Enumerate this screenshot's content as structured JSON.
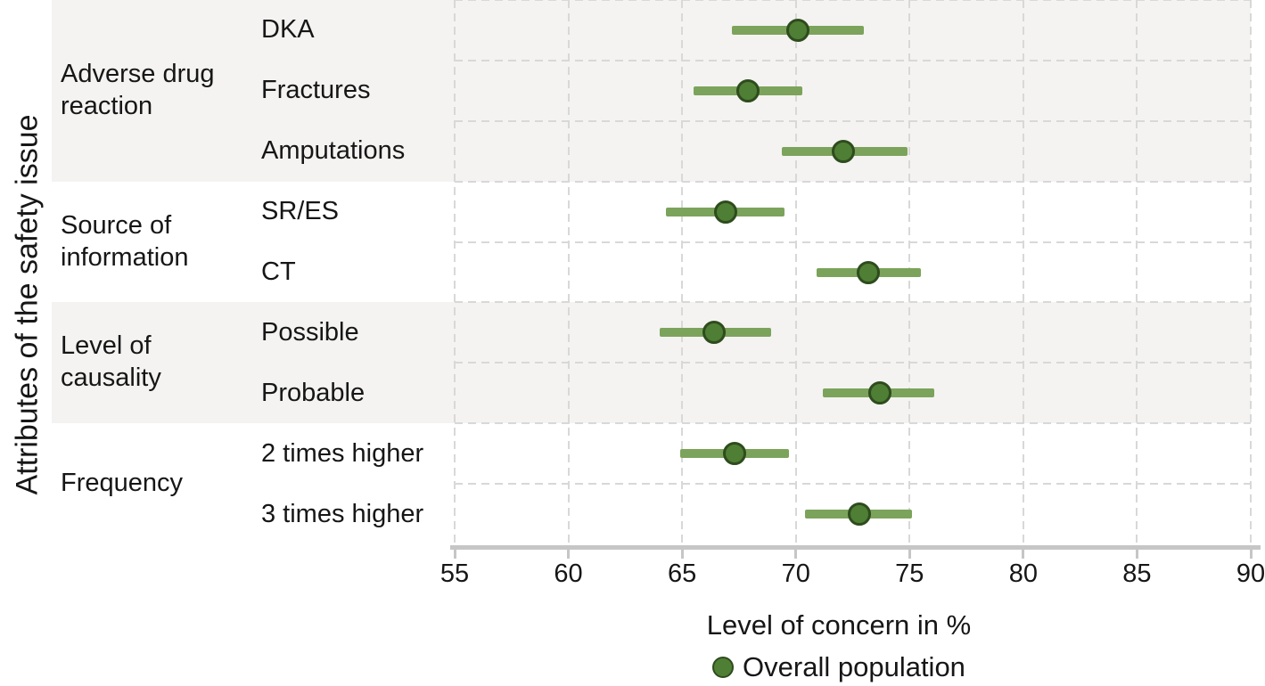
{
  "chart_data": {
    "type": "forest",
    "title": "",
    "xlabel": "Level of concern in %",
    "ylabel": "Attributes of the safety issue",
    "xlim": [
      55,
      90
    ],
    "x_ticks": [
      55,
      60,
      65,
      70,
      75,
      80,
      85,
      90
    ],
    "grid": "dashed",
    "legend_position": "bottom",
    "legend": [
      {
        "label": "Overall population",
        "marker": "circle",
        "color": "#4f7e35"
      }
    ],
    "groups": [
      {
        "label": "Adverse drug reaction",
        "items": [
          {
            "label": "DKA",
            "estimate": 70.1,
            "ci_low": 67.2,
            "ci_high": 73.0
          },
          {
            "label": "Fractures",
            "estimate": 67.9,
            "ci_low": 65.5,
            "ci_high": 70.3
          },
          {
            "label": "Amputations",
            "estimate": 72.1,
            "ci_low": 69.4,
            "ci_high": 74.9
          }
        ]
      },
      {
        "label": "Source of information",
        "items": [
          {
            "label": "SR/ES",
            "estimate": 66.9,
            "ci_low": 64.3,
            "ci_high": 69.5
          },
          {
            "label": "CT",
            "estimate": 73.2,
            "ci_low": 70.9,
            "ci_high": 75.5
          }
        ]
      },
      {
        "label": "Level of causality",
        "items": [
          {
            "label": "Possible",
            "estimate": 66.4,
            "ci_low": 64.0,
            "ci_high": 68.9
          },
          {
            "label": "Probable",
            "estimate": 73.7,
            "ci_low": 71.2,
            "ci_high": 76.1
          }
        ]
      },
      {
        "label": "Frequency",
        "items": [
          {
            "label": "2 times higher",
            "estimate": 67.3,
            "ci_low": 64.9,
            "ci_high": 69.7
          },
          {
            "label": "3 times higher",
            "estimate": 72.8,
            "ci_low": 70.4,
            "ci_high": 75.1
          }
        ]
      }
    ],
    "colors": {
      "band_shade": "#f4f3f1",
      "band_plain": "#ffffff",
      "gridline": "#d8d8d8",
      "axis": "#c6c6c6",
      "ci_line": "#7ca35b",
      "marker_fill": "#4f7e35",
      "marker_border": "#2e4c1d",
      "text": "#161616"
    }
  }
}
